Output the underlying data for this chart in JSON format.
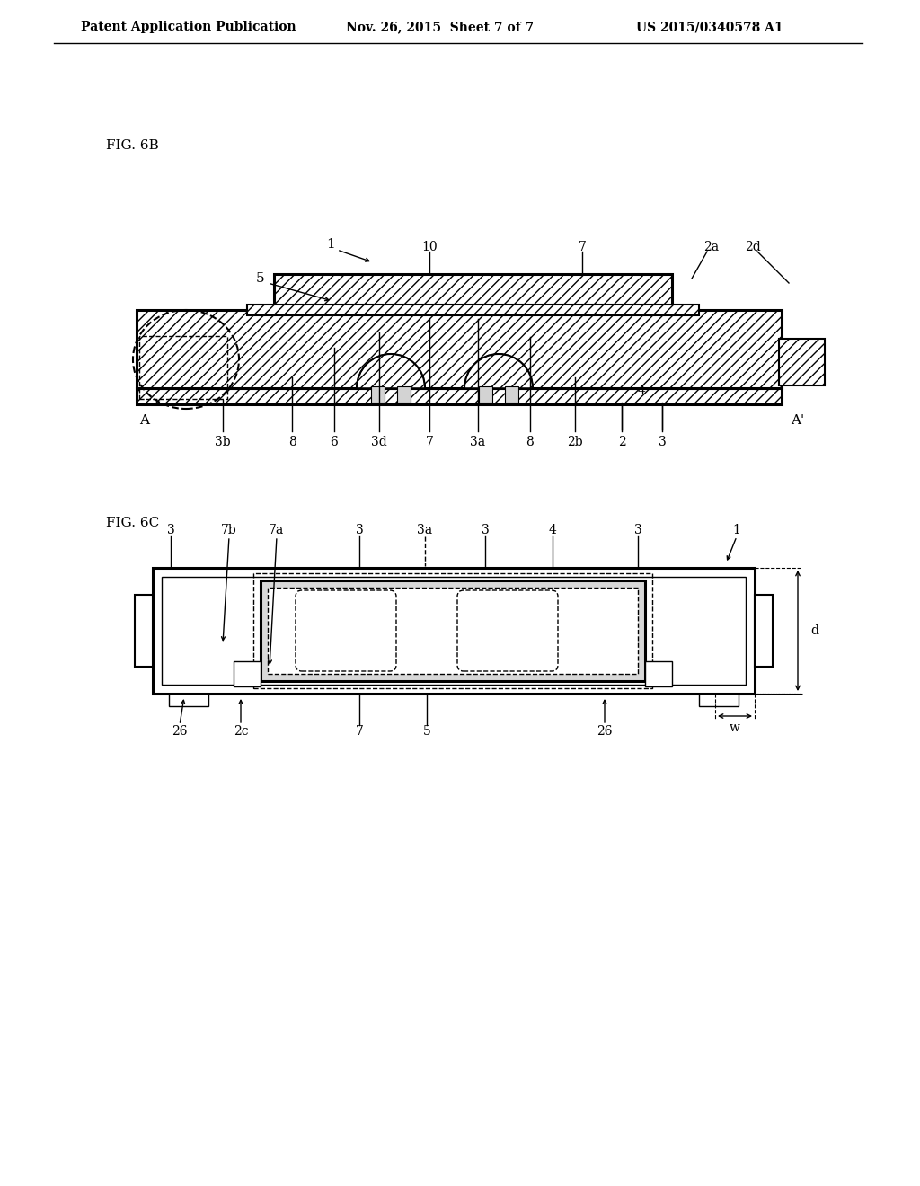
{
  "bg_color": "#ffffff",
  "line_color": "#000000",
  "header_left": "Patent Application Publication",
  "header_center": "Nov. 26, 2015  Sheet 7 of 7",
  "header_right": "US 2015/0340578 A1",
  "fig6b_label": "FIG. 6B",
  "fig6c_label": "FIG. 6C"
}
